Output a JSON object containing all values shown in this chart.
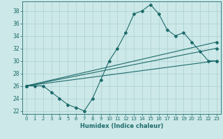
{
  "xlabel": "Humidex (Indice chaleur)",
  "xlim": [
    -0.5,
    23.5
  ],
  "ylim": [
    21.5,
    39.5
  ],
  "yticks": [
    22,
    24,
    26,
    28,
    30,
    32,
    34,
    36,
    38
  ],
  "xticks": [
    0,
    1,
    2,
    3,
    4,
    5,
    6,
    7,
    8,
    9,
    10,
    11,
    12,
    13,
    14,
    15,
    16,
    17,
    18,
    19,
    20,
    21,
    22,
    23
  ],
  "bg_color": "#cce8e8",
  "line_color": "#1e6b6b",
  "grid_color": "#add0d0",
  "line1_x": [
    0,
    1,
    2,
    3,
    4,
    5,
    6,
    7,
    8,
    9,
    10,
    11,
    12,
    13,
    14,
    15,
    16,
    17,
    18,
    19,
    20,
    21,
    22,
    23
  ],
  "line1_y": [
    26,
    26,
    26,
    25,
    24,
    23,
    22.5,
    22,
    24,
    27,
    30,
    32,
    34.5,
    37.5,
    38,
    39,
    37.5,
    35,
    34,
    34.5,
    33,
    31.5,
    30,
    30
  ],
  "line2_x": [
    0,
    23
  ],
  "line2_y": [
    26,
    30
  ],
  "line3_x": [
    0,
    23
  ],
  "line3_y": [
    26,
    32
  ],
  "line4_x": [
    0,
    23
  ],
  "line4_y": [
    26,
    33
  ]
}
